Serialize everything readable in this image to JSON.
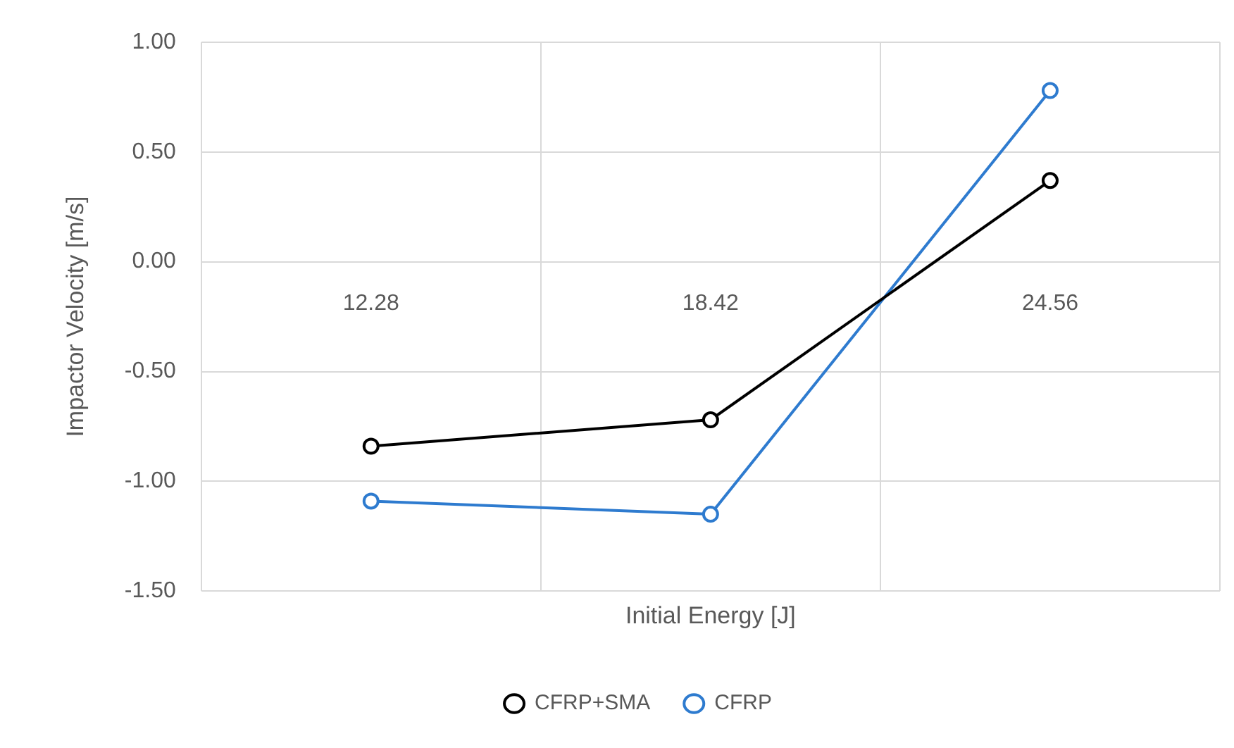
{
  "chart_data": {
    "type": "line",
    "xlabel": "Initial Energy [J]",
    "ylabel": "Impactor Velocity [m/s]",
    "categories": [
      "12.28",
      "18.42",
      "24.56"
    ],
    "series": [
      {
        "name": "CFRP+SMA",
        "color": "#000000",
        "values": [
          -0.84,
          -0.72,
          0.37
        ]
      },
      {
        "name": "CFRP",
        "color": "#2e7bcf",
        "values": [
          -1.09,
          -1.15,
          0.78
        ]
      }
    ],
    "ylim": [
      -1.5,
      1.0
    ],
    "yticks": [
      {
        "value": -1.5,
        "label": "-1.50"
      },
      {
        "value": -1.0,
        "label": "-1.00"
      },
      {
        "value": -0.5,
        "label": "-0.50"
      },
      {
        "value": 0,
        "label": "0.00"
      },
      {
        "value": 0.5,
        "label": "0.50"
      },
      {
        "value": 1.0,
        "label": "1.00"
      }
    ],
    "grid": true,
    "legend": "bottom",
    "marker": "circle",
    "line_style": "solid"
  }
}
